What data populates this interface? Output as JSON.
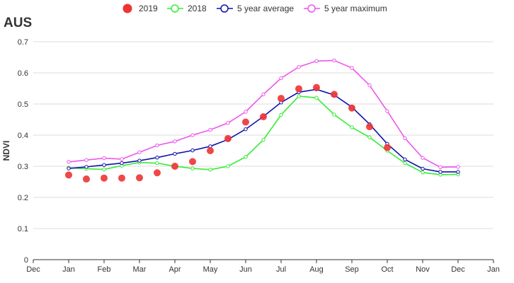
{
  "chart_data": {
    "type": "line",
    "title": "AUS",
    "xlabel": "",
    "ylabel": "NDVI",
    "ylim": [
      0,
      0.7
    ],
    "yticks": [
      "0",
      "0.1",
      "0.2",
      "0.3",
      "0.4",
      "0.5",
      "0.6",
      "0.7"
    ],
    "xticks": [
      "Dec",
      "Jan",
      "Feb",
      "Mar",
      "Apr",
      "May",
      "Jun",
      "Jul",
      "Aug",
      "Sep",
      "Oct",
      "Nov",
      "Dec",
      "Jan"
    ],
    "x_range": [
      0,
      13
    ],
    "grid": "horizontal",
    "legend_position": "top-center",
    "series": [
      {
        "name": "2019",
        "style": "points",
        "color": "#ee3333",
        "x": [
          1,
          1.5,
          2,
          2.5,
          3,
          3.5,
          4,
          4.5,
          5,
          5.5,
          6,
          6.5,
          7,
          7.5,
          8,
          8.5,
          9,
          9.5,
          10
        ],
        "y": [
          0.272,
          0.259,
          0.262,
          0.262,
          0.263,
          0.279,
          0.3,
          0.315,
          0.35,
          0.389,
          0.442,
          0.459,
          0.518,
          0.549,
          0.553,
          0.531,
          0.487,
          0.427,
          0.36
        ]
      },
      {
        "name": "2018",
        "style": "line",
        "color": "#33ee33",
        "x": [
          1,
          1.5,
          2,
          2.5,
          3,
          3.5,
          4,
          4.5,
          5,
          5.5,
          6,
          6.5,
          7,
          7.5,
          8,
          8.5,
          9,
          9.5,
          10,
          10.5,
          11,
          11.5,
          12
        ],
        "y": [
          0.295,
          0.292,
          0.29,
          0.302,
          0.312,
          0.31,
          0.3,
          0.293,
          0.289,
          0.3,
          0.33,
          0.385,
          0.465,
          0.525,
          0.52,
          0.466,
          0.425,
          0.393,
          0.35,
          0.31,
          0.28,
          0.273,
          0.274
        ]
      },
      {
        "name": "5 year average",
        "style": "line",
        "color": "#1111aa",
        "x": [
          1,
          1.5,
          2,
          2.5,
          3,
          3.5,
          4,
          4.5,
          5,
          5.5,
          6,
          6.5,
          7,
          7.5,
          8,
          8.5,
          9,
          9.5,
          10,
          10.5,
          11,
          11.5,
          12
        ],
        "y": [
          0.293,
          0.298,
          0.304,
          0.31,
          0.318,
          0.328,
          0.34,
          0.351,
          0.364,
          0.386,
          0.419,
          0.46,
          0.505,
          0.538,
          0.547,
          0.529,
          0.49,
          0.435,
          0.372,
          0.322,
          0.292,
          0.282,
          0.282
        ]
      },
      {
        "name": "5 year maximum",
        "style": "line",
        "color": "#ee55ee",
        "x": [
          1,
          1.5,
          2,
          2.5,
          3,
          3.5,
          4,
          4.5,
          5,
          5.5,
          6,
          6.5,
          7,
          7.5,
          8,
          8.5,
          9,
          9.5,
          10,
          10.5,
          11,
          11.5,
          12
        ],
        "y": [
          0.314,
          0.32,
          0.326,
          0.323,
          0.345,
          0.367,
          0.38,
          0.4,
          0.417,
          0.439,
          0.475,
          0.531,
          0.583,
          0.619,
          0.638,
          0.64,
          0.616,
          0.56,
          0.477,
          0.39,
          0.327,
          0.297,
          0.298
        ]
      }
    ]
  }
}
